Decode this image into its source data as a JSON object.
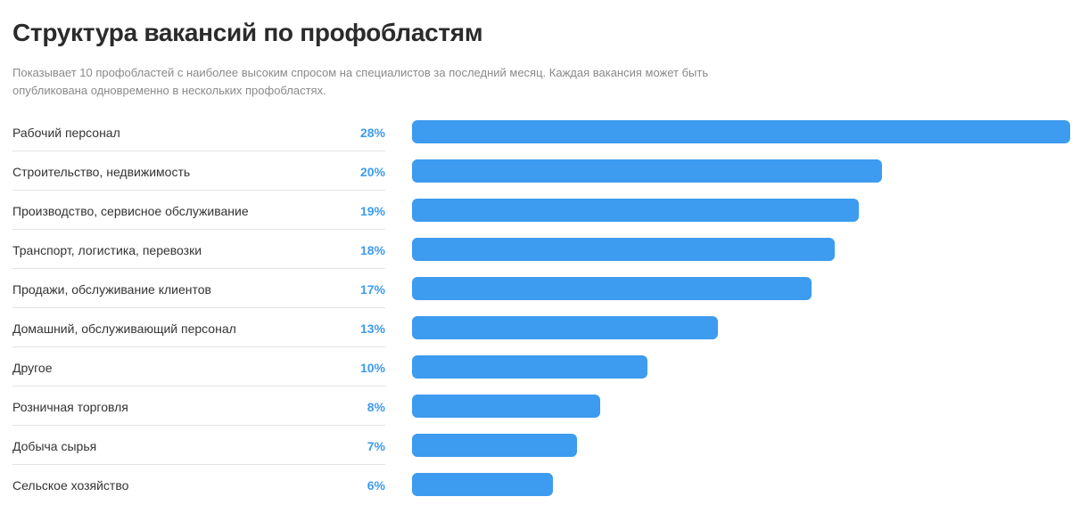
{
  "title": "Структура вакансий по профобластям",
  "subtitle": "Показывает 10 профобластей с наиболее высоким спросом на специалистов за последний месяц. Каждая вакансия может быть опубликована одновременно в нескольких профобластях.",
  "colors": {
    "bar": "#3d9bf0",
    "percent": "#3d9bf0",
    "divider": "#e2e2e2"
  },
  "chart_data": {
    "type": "bar",
    "orientation": "horizontal",
    "categories": [
      "Рабочий персонал",
      "Строительство, недвижимость",
      "Производство, сервисное обслуживание",
      "Транспорт, логистика, перевозки",
      "Продажи, обслуживание клиентов",
      "Домашний, обслуживающий персонал",
      "Другое",
      "Розничная торговля",
      "Добыча сырья",
      "Сельское хозяйство"
    ],
    "values": [
      28,
      20,
      19,
      18,
      17,
      13,
      10,
      8,
      7,
      6
    ],
    "value_labels": [
      "28%",
      "20%",
      "19%",
      "18%",
      "17%",
      "13%",
      "10%",
      "8%",
      "7%",
      "6%"
    ],
    "unit": "%",
    "xlim": [
      0,
      28
    ]
  }
}
